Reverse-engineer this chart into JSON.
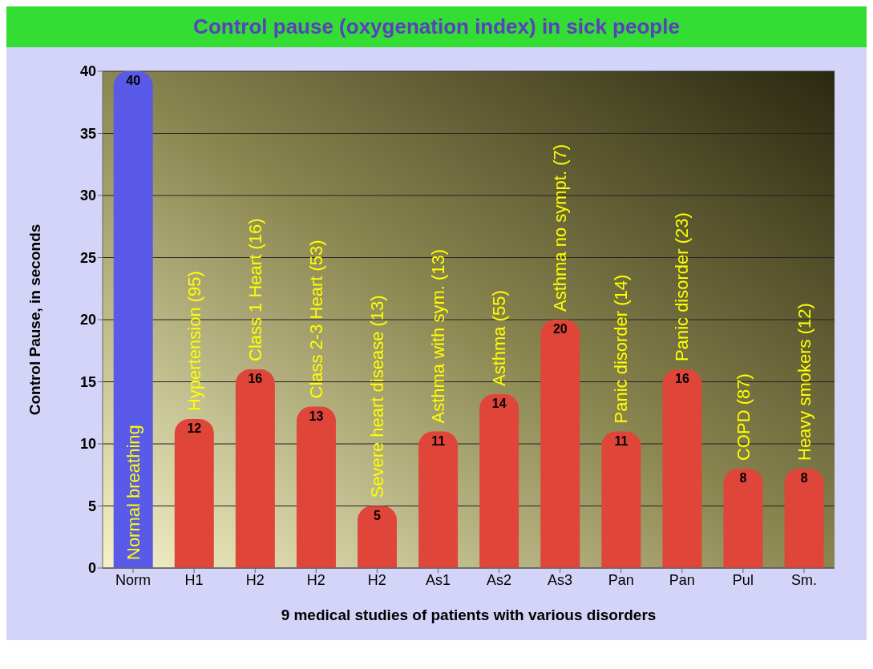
{
  "chart_data": {
    "type": "bar",
    "title": "Control pause (oxygenation index) in sick people",
    "xlabel": "9 medical studies of patients with various disorders",
    "ylabel": "Control Pause, in seconds",
    "categories": [
      "Norm",
      "H1",
      "H2",
      "H2",
      "H2",
      "As1",
      "As2",
      "As3",
      "Pan",
      "Pan",
      "Pul",
      "Sm."
    ],
    "values": [
      40,
      12,
      16,
      13,
      5,
      11,
      14,
      20,
      11,
      16,
      8,
      8
    ],
    "colors": [
      "#5a5ae8",
      "#e0453a",
      "#e0453a",
      "#e0453a",
      "#e0453a",
      "#e0453a",
      "#e0453a",
      "#e0453a",
      "#e0453a",
      "#e0453a",
      "#e0453a",
      "#e0453a"
    ],
    "annotations": [
      "Normal breathing",
      "Hypertension (95)",
      "Class 1 Heart (16)",
      "Class 2-3 Heart (53)",
      "Severe heart disease (13)",
      "Asthma with sym. (13)",
      "Asthma (55)",
      "Asthma no sympt. (7)",
      "Panic disorder (14)",
      "Panic disorder (23)",
      "COPD (87)",
      "Heavy smokers (12)"
    ],
    "data_labels": true,
    "ylim": [
      0,
      40
    ],
    "yticks": [
      0,
      5,
      10,
      15,
      20,
      25,
      30,
      35,
      40
    ],
    "grid": "y"
  }
}
